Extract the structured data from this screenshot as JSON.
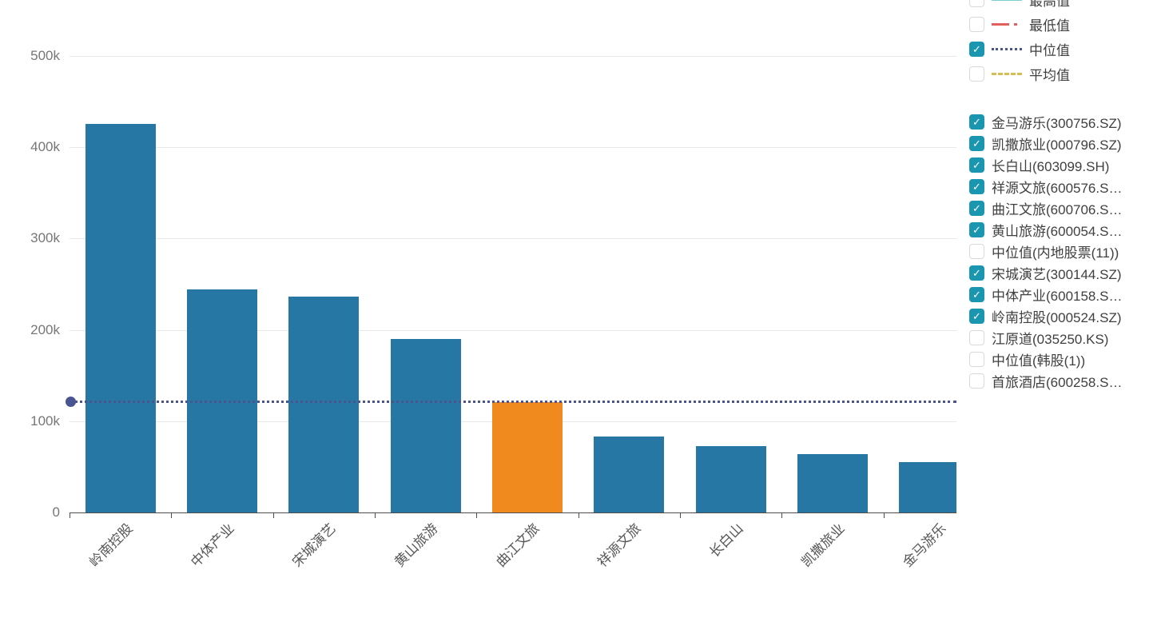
{
  "chart_data": {
    "type": "bar",
    "title": "",
    "xlabel": "",
    "ylabel": "",
    "categories": [
      "岭南控股",
      "中体产业",
      "宋城演艺",
      "黄山旅游",
      "曲江文旅",
      "祥源文旅",
      "长白山",
      "凯撒旅业",
      "金马游乐"
    ],
    "values": [
      426000,
      244000,
      236000,
      190000,
      121000,
      83000,
      73000,
      64000,
      55000
    ],
    "highlighted_category": "曲江文旅",
    "median_line": {
      "label": "中位值",
      "value": 122000
    },
    "y_ticks": [
      0,
      100000,
      200000,
      300000,
      400000,
      500000
    ],
    "y_tick_labels": [
      "0",
      "100k",
      "200k",
      "300k",
      "400k",
      "500k"
    ],
    "ylim": [
      0,
      530000
    ],
    "grid": true,
    "legend_position": "right",
    "bar_color": "#2677a3",
    "highlight_color": "#f0891e",
    "median_color": "#4a5490"
  },
  "legend": {
    "checkbox_color": "#1b96b0",
    "check_glyph": "✓",
    "stat_items": [
      {
        "label": "最高值",
        "checked": false,
        "style": "solid",
        "color": "#7bd0d0"
      },
      {
        "label": "最低值",
        "checked": false,
        "style": "dashdot",
        "color": "#e25f5c"
      },
      {
        "label": "中位值",
        "checked": true,
        "style": "dotted",
        "color": "#4a5490"
      },
      {
        "label": "平均值",
        "checked": false,
        "style": "dashed",
        "color": "#d9bd50"
      }
    ],
    "stock_items": [
      {
        "label": "金马游乐(300756.SZ)",
        "checked": true
      },
      {
        "label": "凯撒旅业(000796.SZ)",
        "checked": true
      },
      {
        "label": "长白山(603099.SH)",
        "checked": true
      },
      {
        "label": "祥源文旅(600576.S…",
        "checked": true
      },
      {
        "label": "曲江文旅(600706.S…",
        "checked": true
      },
      {
        "label": "黄山旅游(600054.S…",
        "checked": true
      },
      {
        "label": "中位值(内地股票(11))",
        "checked": false
      },
      {
        "label": "宋城演艺(300144.SZ)",
        "checked": true
      },
      {
        "label": "中体产业(600158.S…",
        "checked": true
      },
      {
        "label": "岭南控股(000524.SZ)",
        "checked": true
      },
      {
        "label": "江原道(035250.KS)",
        "checked": false
      },
      {
        "label": "中位值(韩股(1))",
        "checked": false
      },
      {
        "label": "首旅酒店(600258.S…",
        "checked": false
      }
    ]
  }
}
